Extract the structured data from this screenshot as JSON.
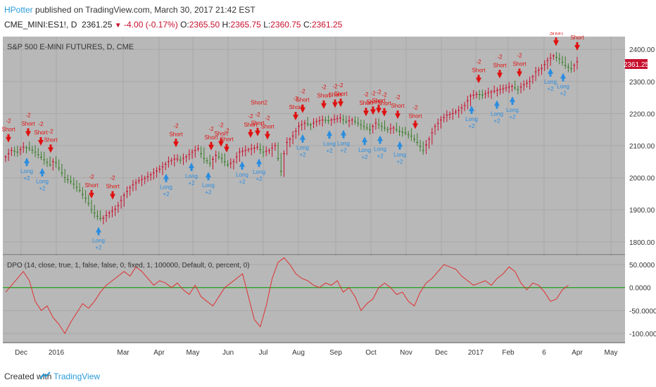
{
  "header": {
    "author": "HPotter",
    "published_text": "published on TradingView.com, March 30, 2017 21:42 EST",
    "symbol_line": "CME_MINI:ES1!, D",
    "last": "2361.25",
    "change": "-4.00 (-0.17%)",
    "o_label": "O:",
    "o_value": "2365.50",
    "h_label": "H:",
    "h_value": "2365.75",
    "l_label": "L:",
    "l_value": "2360.75",
    "c_label": "C:",
    "c_value": "2361.25"
  },
  "main_pane": {
    "title": "S&P 500 E-MINI FUTURES, D, CME",
    "price_axis": [
      "2400.00",
      "2300.00",
      "2200.00",
      "2100.00",
      "2000.00",
      "1900.00",
      "1800.00"
    ],
    "last_price_label": "2361.25"
  },
  "indicator_pane": {
    "title": "DPO (14, close, true, 1, false, false, 0, fixed, 1, 100000, Default, 0, percent, 0)",
    "axis": [
      "50.0000",
      "0.0000",
      "-50.0000",
      "-100.0000"
    ]
  },
  "time_axis": [
    "Dec",
    "2016",
    "Mar",
    "Apr",
    "May",
    "Jun",
    "Jul",
    "Aug",
    "Sep",
    "Oct",
    "Nov",
    "Dec",
    "2017",
    "Feb",
    "6",
    "Apr",
    "May"
  ],
  "signal_labels": {
    "short": "Short",
    "long": "Long",
    "short_qty": "-2",
    "long_qty": "+2",
    "short2": "Short2"
  },
  "footer": {
    "created": "Created with",
    "brand": "TradingView"
  },
  "colors": {
    "up": "#c8102e",
    "down": "#3a7d2a",
    "pane_bg": "#b8b8b8",
    "short_arrow": "#e01010",
    "long_arrow": "#2a8de0",
    "dpo_line": "#e03030",
    "zero_line": "#2fa02f"
  },
  "chart_data": [
    {
      "type": "candlestick",
      "title": "S&P 500 E-MINI FUTURES, D, CME",
      "ylim": [
        1760,
        2440
      ],
      "x_ticks": [
        "Dec",
        "2016",
        "Mar",
        "Apr",
        "May",
        "Jun",
        "Jul",
        "Aug",
        "Sep",
        "Oct",
        "Nov",
        "Dec",
        "2017",
        "Feb",
        "6",
        "Apr",
        "May"
      ],
      "close_path": [
        [
          0,
          2065
        ],
        [
          4,
          2085
        ],
        [
          8,
          2080
        ],
        [
          12,
          2095
        ],
        [
          16,
          2092
        ],
        [
          20,
          2080
        ],
        [
          25,
          2060
        ],
        [
          30,
          2040
        ],
        [
          33,
          2055
        ],
        [
          36,
          2030
        ],
        [
          40,
          2000
        ],
        [
          45,
          1985
        ],
        [
          50,
          1960
        ],
        [
          55,
          1930
        ],
        [
          58,
          1900
        ],
        [
          62,
          1880
        ],
        [
          65,
          1870
        ],
        [
          70,
          1890
        ],
        [
          75,
          1905
        ],
        [
          80,
          1945
        ],
        [
          85,
          1975
        ],
        [
          90,
          1990
        ],
        [
          95,
          2000
        ],
        [
          100,
          2015
        ],
        [
          105,
          2030
        ],
        [
          110,
          2050
        ],
        [
          115,
          2060
        ],
        [
          118,
          2055
        ],
        [
          122,
          2065
        ],
        [
          126,
          2080
        ],
        [
          130,
          2090
        ],
        [
          134,
          2060
        ],
        [
          138,
          2045
        ],
        [
          142,
          2070
        ],
        [
          146,
          2060
        ],
        [
          150,
          2040
        ],
        [
          154,
          2050
        ],
        [
          158,
          2080
        ],
        [
          162,
          2085
        ],
        [
          166,
          2090
        ],
        [
          170,
          2095
        ],
        [
          174,
          2080
        ],
        [
          178,
          2085
        ],
        [
          182,
          2100
        ],
        [
          184,
          2060
        ],
        [
          186,
          2020
        ],
        [
          188,
          2075
        ],
        [
          190,
          2110
        ],
        [
          194,
          2130
        ],
        [
          198,
          2160
        ],
        [
          202,
          2170
        ],
        [
          206,
          2165
        ],
        [
          210,
          2175
        ],
        [
          214,
          2180
        ],
        [
          218,
          2178
        ],
        [
          222,
          2182
        ],
        [
          226,
          2186
        ],
        [
          230,
          2175
        ],
        [
          234,
          2180
        ],
        [
          238,
          2170
        ],
        [
          242,
          2160
        ],
        [
          246,
          2150
        ],
        [
          250,
          2170
        ],
        [
          254,
          2160
        ],
        [
          258,
          2150
        ],
        [
          262,
          2155
        ],
        [
          266,
          2145
        ],
        [
          270,
          2140
        ],
        [
          274,
          2130
        ],
        [
          278,
          2110
        ],
        [
          282,
          2085
        ],
        [
          286,
          2120
        ],
        [
          290,
          2160
        ],
        [
          294,
          2180
        ],
        [
          298,
          2195
        ],
        [
          302,
          2200
        ],
        [
          306,
          2210
        ],
        [
          310,
          2225
        ],
        [
          314,
          2255
        ],
        [
          318,
          2260
        ],
        [
          322,
          2258
        ],
        [
          326,
          2265
        ],
        [
          330,
          2270
        ],
        [
          334,
          2275
        ],
        [
          338,
          2280
        ],
        [
          342,
          2285
        ],
        [
          346,
          2275
        ],
        [
          350,
          2290
        ],
        [
          354,
          2300
        ],
        [
          358,
          2330
        ],
        [
          362,
          2340
        ],
        [
          366,
          2365
        ],
        [
          370,
          2380
        ],
        [
          374,
          2370
        ],
        [
          378,
          2350
        ],
        [
          382,
          2340
        ],
        [
          386,
          2361
        ]
      ],
      "last_price": 2361.25
    },
    {
      "type": "line",
      "title": "DPO (14, close, true, 1, false, false, 0, fixed, 1, 100000, Default, 0, percent, 0)",
      "ylim": [
        -120,
        70
      ],
      "zero_line": 0,
      "values": [
        [
          0,
          -10
        ],
        [
          4,
          5
        ],
        [
          8,
          20
        ],
        [
          12,
          35
        ],
        [
          16,
          15
        ],
        [
          20,
          -30
        ],
        [
          24,
          -50
        ],
        [
          28,
          -40
        ],
        [
          32,
          -65
        ],
        [
          36,
          -80
        ],
        [
          40,
          -100
        ],
        [
          44,
          -75
        ],
        [
          48,
          -55
        ],
        [
          52,
          -35
        ],
        [
          56,
          -45
        ],
        [
          60,
          -30
        ],
        [
          64,
          -10
        ],
        [
          68,
          5
        ],
        [
          72,
          15
        ],
        [
          76,
          25
        ],
        [
          80,
          35
        ],
        [
          84,
          25
        ],
        [
          88,
          45
        ],
        [
          92,
          35
        ],
        [
          96,
          20
        ],
        [
          100,
          5
        ],
        [
          104,
          15
        ],
        [
          108,
          10
        ],
        [
          112,
          0
        ],
        [
          116,
          10
        ],
        [
          120,
          -5
        ],
        [
          124,
          -15
        ],
        [
          128,
          5
        ],
        [
          132,
          -20
        ],
        [
          136,
          -30
        ],
        [
          140,
          -40
        ],
        [
          144,
          -20
        ],
        [
          148,
          0
        ],
        [
          152,
          10
        ],
        [
          156,
          20
        ],
        [
          160,
          30
        ],
        [
          164,
          -20
        ],
        [
          168,
          -70
        ],
        [
          172,
          -85
        ],
        [
          176,
          -40
        ],
        [
          180,
          20
        ],
        [
          184,
          55
        ],
        [
          188,
          65
        ],
        [
          192,
          50
        ],
        [
          196,
          30
        ],
        [
          200,
          20
        ],
        [
          204,
          15
        ],
        [
          208,
          5
        ],
        [
          212,
          0
        ],
        [
          216,
          10
        ],
        [
          220,
          5
        ],
        [
          224,
          15
        ],
        [
          228,
          -10
        ],
        [
          232,
          0
        ],
        [
          236,
          -20
        ],
        [
          240,
          -50
        ],
        [
          244,
          -35
        ],
        [
          248,
          -25
        ],
        [
          252,
          0
        ],
        [
          256,
          10
        ],
        [
          260,
          0
        ],
        [
          264,
          -15
        ],
        [
          268,
          -10
        ],
        [
          272,
          -30
        ],
        [
          276,
          -40
        ],
        [
          280,
          -10
        ],
        [
          284,
          10
        ],
        [
          288,
          20
        ],
        [
          292,
          35
        ],
        [
          296,
          50
        ],
        [
          300,
          45
        ],
        [
          304,
          40
        ],
        [
          308,
          25
        ],
        [
          312,
          15
        ],
        [
          316,
          5
        ],
        [
          320,
          10
        ],
        [
          324,
          15
        ],
        [
          328,
          5
        ],
        [
          332,
          20
        ],
        [
          336,
          30
        ],
        [
          340,
          45
        ],
        [
          344,
          35
        ],
        [
          348,
          10
        ],
        [
          352,
          -5
        ],
        [
          356,
          10
        ],
        [
          360,
          5
        ],
        [
          364,
          -10
        ],
        [
          368,
          -30
        ],
        [
          372,
          -25
        ],
        [
          376,
          -5
        ],
        [
          380,
          5
        ]
      ]
    }
  ]
}
